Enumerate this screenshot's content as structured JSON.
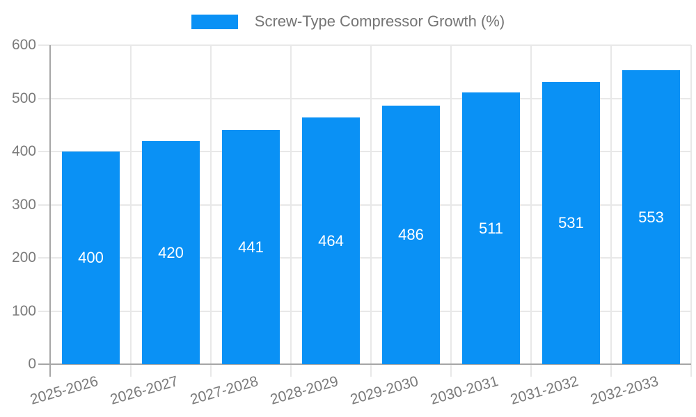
{
  "chart_data": {
    "type": "bar",
    "title": "Screw-Type Compressor Growth (%)",
    "legend": [
      "Screw-Type Compressor Growth (%)"
    ],
    "legend_position": "top",
    "categories": [
      "2025-2026",
      "2026-2027",
      "2027-2028",
      "2028-2029",
      "2029-2030",
      "2030-2031",
      "2031-2032",
      "2032-2033"
    ],
    "values": [
      400,
      420,
      441,
      464,
      486,
      511,
      531,
      553
    ],
    "xlabel": "",
    "ylabel": "",
    "ylim": [
      0,
      600
    ],
    "yticks": [
      0,
      100,
      200,
      300,
      400,
      500,
      600
    ],
    "grid": true,
    "x_tick_rotation_deg": -16,
    "colors": {
      "bar": "#0A91F5",
      "bar_label": "#FFFFFF",
      "grid": "#E8E8E8",
      "axis": "#A6A6A6",
      "tick_label": "#7B7B7B",
      "legend_text": "#757575",
      "background": "#FFFFFF"
    }
  }
}
